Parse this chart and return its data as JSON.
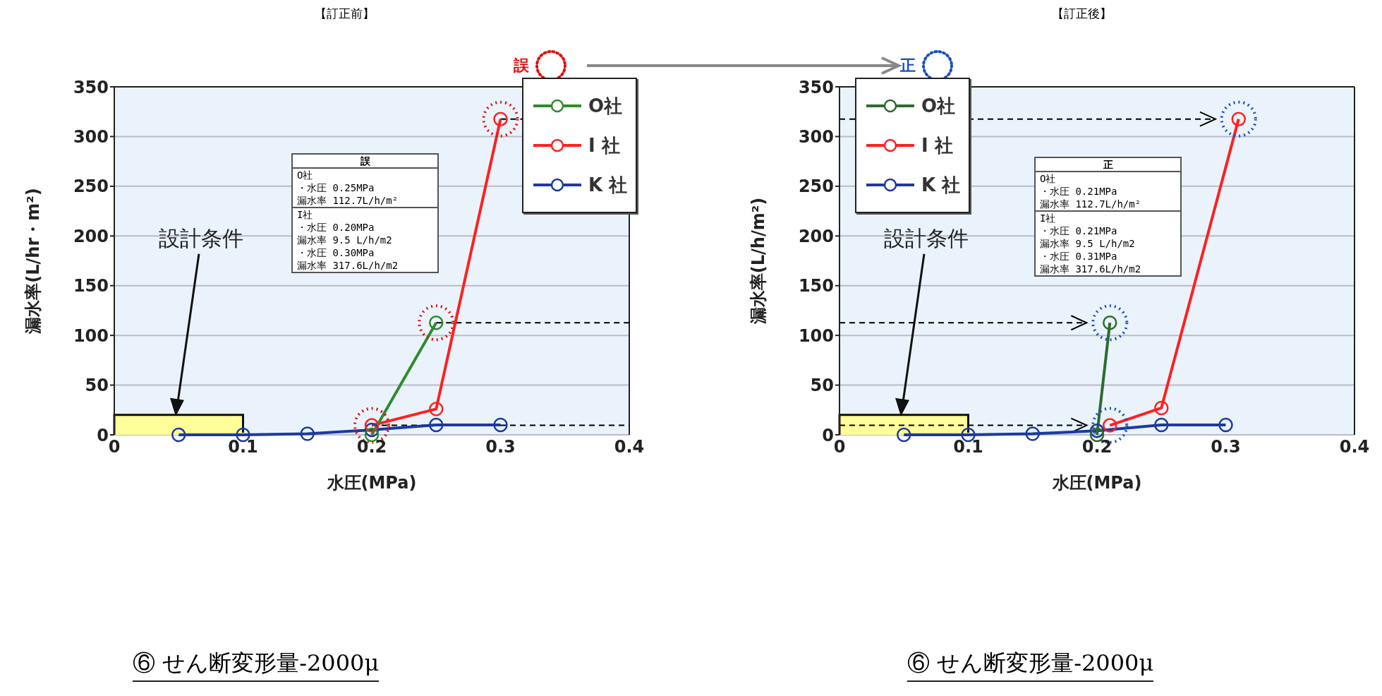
{
  "chart_data": [
    {
      "type": "line",
      "title": "【訂正前】",
      "subtitle": "⑥ せん断変形量-2000μ",
      "xlabel": "水圧(MPa)",
      "ylabel": "漏水率(L/hr・m²)",
      "xlim": [
        0,
        0.4
      ],
      "ylim": [
        0,
        350
      ],
      "xticks": [
        0,
        0.1,
        0.2,
        0.3,
        0.4
      ],
      "yticks": [
        0,
        50,
        100,
        150,
        200,
        250,
        300,
        350
      ],
      "grid": "y",
      "legend": "top right",
      "marker": "circle",
      "line_style": "solid",
      "series": [
        {
          "name": "O社",
          "color": "#2e8b2e",
          "x": [
            0.2,
            0.25
          ],
          "values": [
            0,
            112.7
          ]
        },
        {
          "name": "I 社",
          "color": "#ff2020",
          "x": [
            0.2,
            0.25,
            0.3
          ],
          "values": [
            9.5,
            26,
            317.6
          ]
        },
        {
          "name": "K 社",
          "color": "#1c3aa0",
          "x": [
            0.05,
            0.1,
            0.15,
            0.2,
            0.25,
            0.3
          ],
          "values": [
            0,
            0,
            1,
            5,
            10,
            10
          ]
        }
      ],
      "bands": [
        {
          "axis": "y",
          "from": 0,
          "to": 20,
          "color": "#ffff99"
        }
      ],
      "ref_lines": [
        {
          "axis": "y",
          "value": 317.6,
          "color": "#000000",
          "line_style": "dashed"
        },
        {
          "axis": "y",
          "value": 112.7,
          "color": "#000000",
          "line_style": "dashed"
        },
        {
          "axis": "y",
          "value": 9.5,
          "color": "#000000",
          "line_style": "dashed"
        }
      ],
      "annotations": [
        "誤",
        "誤",
        "設計条件",
        "O社",
        "・水圧 0.25MPa",
        "漏水率 112.7L/h/m²",
        "I社",
        "・水圧 0.20MPa",
        "漏水率 9.5 L/h/m2",
        "・水圧 0.30MPa",
        "漏水率 317.6L/h/m2"
      ]
    },
    {
      "type": "line",
      "title": "【訂正後】",
      "subtitle": "⑥ せん断変形量-2000μ",
      "xlabel": "水圧(MPa)",
      "ylabel": "漏水率(L/h/m²)",
      "xlim": [
        0,
        0.4
      ],
      "ylim": [
        0,
        350
      ],
      "xticks": [
        0,
        0.1,
        0.2,
        0.3,
        0.4
      ],
      "yticks": [
        0,
        50,
        100,
        150,
        200,
        250,
        300,
        350
      ],
      "grid": "y",
      "legend": "top left",
      "marker": "circle",
      "line_style": "solid",
      "series": [
        {
          "name": "O社",
          "color": "#2e6b2e",
          "x": [
            0.2,
            0.21
          ],
          "values": [
            0,
            112.7
          ]
        },
        {
          "name": "I 社",
          "color": "#ff2020",
          "x": [
            0.21,
            0.25,
            0.31
          ],
          "values": [
            9.5,
            27,
            317.6
          ]
        },
        {
          "name": "K 社",
          "color": "#1c3aa0",
          "x": [
            0.05,
            0.1,
            0.15,
            0.2,
            0.25,
            0.3
          ],
          "values": [
            0,
            0,
            1,
            4,
            10,
            10
          ]
        }
      ],
      "bands": [
        {
          "axis": "y",
          "from": 0,
          "to": 20,
          "color": "#ffff99"
        }
      ],
      "ref_lines": [
        {
          "axis": "y",
          "value": 317.6,
          "color": "#000000",
          "line_style": "dashed"
        },
        {
          "axis": "y",
          "value": 112.7,
          "color": "#000000",
          "line_style": "dashed"
        },
        {
          "axis": "y",
          "value": 9.5,
          "color": "#000000",
          "line_style": "dashed"
        }
      ],
      "annotations": [
        "正",
        "正",
        "設計条件",
        "O社",
        "・水圧 0.21MPa",
        "漏水率 112.7L/h/m²",
        "I社",
        "・水圧 0.21MPa",
        "漏水率 9.5 L/h/m2",
        "・水圧 0.31MPa",
        "漏水率 317.6L/h/m2"
      ]
    }
  ]
}
